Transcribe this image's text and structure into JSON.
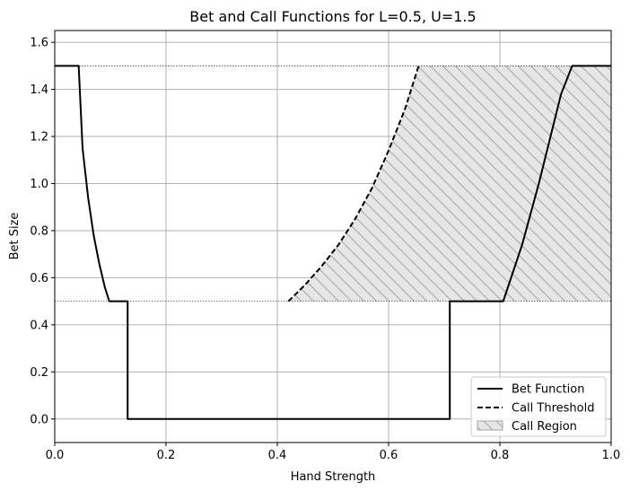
{
  "chart_data": {
    "type": "line",
    "title": "Bet and Call Functions for L=0.5, U=1.5",
    "xlabel": "Hand Strength",
    "ylabel": "Bet Size",
    "xlim": [
      0.0,
      1.0
    ],
    "ylim": [
      -0.1,
      1.65
    ],
    "xticks": [
      0.0,
      0.2,
      0.4,
      0.6,
      0.8,
      1.0
    ],
    "xtick_labels": [
      "0.0",
      "0.2",
      "0.4",
      "0.6",
      "0.8",
      "1.0"
    ],
    "yticks": [
      0.0,
      0.2,
      0.4,
      0.6,
      0.8,
      1.0,
      1.2,
      1.4,
      1.6
    ],
    "ytick_labels": [
      "0.0",
      "0.2",
      "0.4",
      "0.6",
      "0.8",
      "1.0",
      "1.2",
      "1.4",
      "1.6"
    ],
    "grid": true,
    "legend_position": "lower-right",
    "reference_lines": [
      {
        "orientation": "horizontal",
        "y": 1.5,
        "style": "dotted"
      },
      {
        "orientation": "horizontal",
        "y": 0.5,
        "style": "dotted"
      }
    ],
    "series": [
      {
        "name": "Bet Function",
        "style": "solid",
        "color": "#000000",
        "x": [
          0.0,
          0.043,
          0.05,
          0.06,
          0.07,
          0.08,
          0.09,
          0.098,
          0.131,
          0.131,
          0.71,
          0.71,
          0.806,
          0.84,
          0.87,
          0.89,
          0.91,
          0.93,
          1.0
        ],
        "y": [
          1.5,
          1.5,
          1.15,
          0.94,
          0.78,
          0.66,
          0.56,
          0.5,
          0.5,
          0.0,
          0.0,
          0.5,
          0.5,
          0.74,
          1.0,
          1.19,
          1.38,
          1.5,
          1.5
        ]
      },
      {
        "name": "Call Threshold",
        "style": "dashed",
        "color": "#000000",
        "x": [
          0.42,
          0.45,
          0.48,
          0.51,
          0.54,
          0.57,
          0.6,
          0.63,
          0.654
        ],
        "y": [
          0.5,
          0.57,
          0.65,
          0.74,
          0.85,
          0.98,
          1.14,
          1.32,
          1.5
        ]
      },
      {
        "name": "Call Region",
        "style": "hatched-fill",
        "color": "#e6e6e6",
        "hatch_color": "#a6a6a6",
        "x": [
          0.42,
          0.45,
          0.48,
          0.51,
          0.54,
          0.57,
          0.6,
          0.63,
          0.654,
          1.0,
          1.0
        ],
        "y": [
          0.5,
          0.57,
          0.65,
          0.74,
          0.85,
          0.98,
          1.14,
          1.32,
          1.5,
          1.5,
          0.5
        ]
      }
    ]
  }
}
